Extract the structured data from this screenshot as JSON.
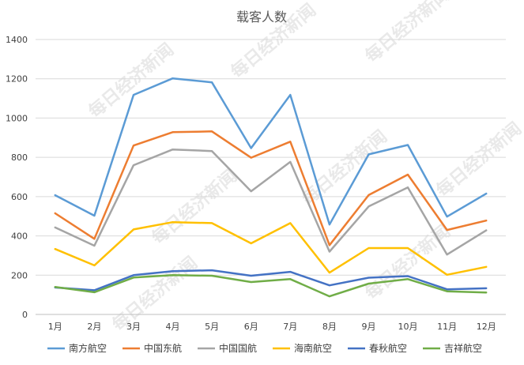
{
  "chart_data": {
    "type": "line",
    "title": "载客人数",
    "xlabel": "",
    "ylabel": "",
    "categories": [
      "1月",
      "2月",
      "3月",
      "4月",
      "5月",
      "6月",
      "7月",
      "8月",
      "9月",
      "10月",
      "11月",
      "12月"
    ],
    "ylim": [
      0,
      1400
    ],
    "yticks": [
      0,
      200,
      400,
      600,
      800,
      1000,
      1200,
      1400
    ],
    "grid": true,
    "legend_position": "bottom",
    "series": [
      {
        "name": "南方航空",
        "color": "#5b9bd5",
        "values": [
          607,
          503,
          1118,
          1202,
          1182,
          847,
          1118,
          458,
          815,
          863,
          498,
          615
        ]
      },
      {
        "name": "中国东航",
        "color": "#ed7d31",
        "values": [
          515,
          385,
          860,
          928,
          932,
          798,
          880,
          353,
          608,
          712,
          430,
          478
        ]
      },
      {
        "name": "中国国航",
        "color": "#a5a5a5",
        "values": [
          443,
          350,
          760,
          840,
          832,
          627,
          777,
          320,
          550,
          647,
          305,
          428
        ]
      },
      {
        "name": "海南航空",
        "color": "#ffc000",
        "values": [
          333,
          250,
          433,
          470,
          465,
          362,
          465,
          213,
          338,
          338,
          202,
          242
        ]
      },
      {
        "name": "春秋航空",
        "color": "#4472c4",
        "values": [
          137,
          123,
          200,
          220,
          225,
          197,
          217,
          148,
          187,
          195,
          128,
          133
        ]
      },
      {
        "name": "吉祥航空",
        "color": "#70ad47",
        "values": [
          140,
          113,
          188,
          200,
          197,
          165,
          180,
          92,
          157,
          180,
          118,
          112
        ]
      }
    ]
  },
  "watermark": "每日经济新闻"
}
